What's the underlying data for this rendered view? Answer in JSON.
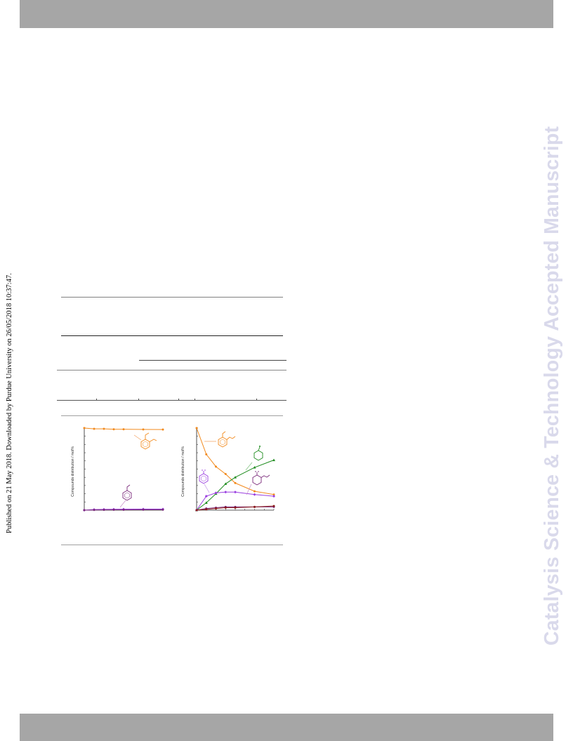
{
  "page": {
    "published_note": "Published on 21 May 2018. Downloaded by Purdue University on 26/05/2018 10:37:47.",
    "watermark": "Catalysis Science & Technology Accepted Manuscript"
  },
  "colors": {
    "band": "#a6a6a6",
    "watermark": "#d9d9eb",
    "orange": "#f28a1d",
    "green": "#1e8c1e",
    "violet": "#9a3ee0",
    "purple": "#7b2a7b",
    "maroon": "#8b1a1a"
  },
  "chart_data": [
    {
      "type": "line",
      "ylabel": "Compounds distribution / mol%",
      "series": [
        {
          "color": "orange",
          "x": [
            0,
            0.5,
            1,
            1.5,
            2,
            3,
            4
          ],
          "y": [
            100,
            99,
            99,
            98.5,
            98.5,
            98.3,
            98.2
          ]
        },
        {
          "color": "violet",
          "x": [
            0,
            0.5,
            1,
            1.5,
            2,
            3,
            4
          ],
          "y": [
            0,
            0.8,
            1,
            1.1,
            1.2,
            1.3,
            1.3
          ]
        },
        {
          "color": "purple",
          "x": [
            0,
            0.5,
            1,
            1.5,
            2,
            3,
            4
          ],
          "y": [
            0,
            0.2,
            0.3,
            0.4,
            0.4,
            0.5,
            0.5
          ]
        }
      ]
    },
    {
      "type": "line",
      "ylabel": "Compounds distribution / mol%",
      "series": [
        {
          "color": "orange",
          "x": [
            0,
            0.5,
            1,
            1.5,
            2,
            3,
            4
          ],
          "y": [
            100,
            68,
            53,
            44,
            33,
            23,
            19
          ]
        },
        {
          "color": "green",
          "x": [
            0,
            0.5,
            1,
            1.5,
            2,
            3,
            4
          ],
          "y": [
            0,
            9,
            20,
            32,
            40,
            52,
            61
          ]
        },
        {
          "color": "violet",
          "x": [
            0,
            0.5,
            1,
            1.5,
            2,
            3,
            4
          ],
          "y": [
            0,
            17,
            21,
            22,
            22,
            19,
            17
          ]
        },
        {
          "color": "purple",
          "x": [
            0,
            0.5,
            1,
            1.5,
            2,
            3,
            4
          ],
          "y": [
            0,
            2,
            3,
            4,
            4,
            4,
            4
          ]
        },
        {
          "color": "maroon",
          "x": [
            0,
            0.5,
            1,
            1.5,
            2,
            3,
            4
          ],
          "y": [
            0,
            1,
            2,
            3,
            3,
            4,
            5
          ]
        }
      ]
    }
  ]
}
